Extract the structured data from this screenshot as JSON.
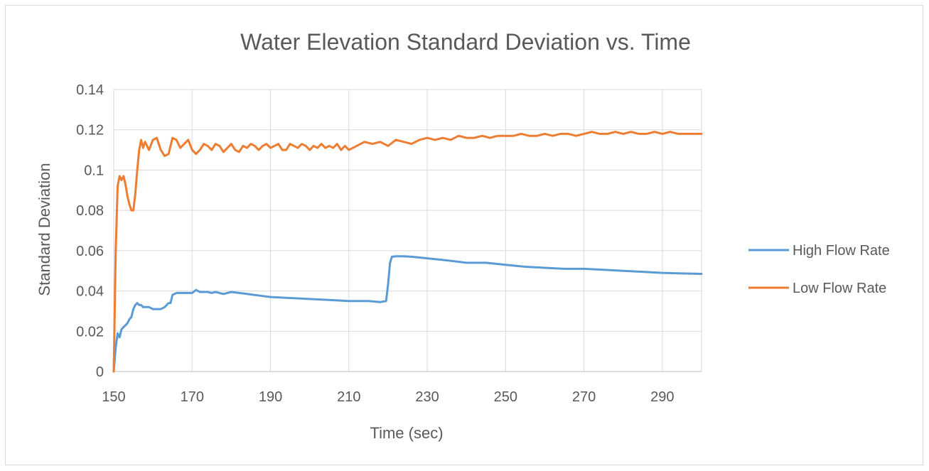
{
  "chart_data": {
    "type": "line",
    "title": "Water Elevation Standard Deviation vs. Time",
    "xlabel": "Time (sec)",
    "ylabel": "Standard Deviation",
    "xlim": [
      150,
      300
    ],
    "ylim": [
      0,
      0.14
    ],
    "x_ticks": [
      150,
      170,
      190,
      210,
      230,
      250,
      270,
      290
    ],
    "y_ticks": [
      0,
      0.02,
      0.04,
      0.06,
      0.08,
      0.1,
      0.12,
      0.14
    ],
    "x_tick_labels": [
      "150",
      "170",
      "190",
      "210",
      "230",
      "250",
      "270",
      "290"
    ],
    "y_tick_labels": [
      "0",
      "0.02",
      "0.04",
      "0.06",
      "0.08",
      "0.1",
      "0.12",
      "0.14"
    ],
    "grid": true,
    "legend_position": "right",
    "series": [
      {
        "name": "High Flow Rate",
        "color": "#5b9bd5",
        "x": [
          150,
          150.5,
          151,
          151.5,
          152,
          152.5,
          153,
          153.5,
          154,
          154.5,
          155,
          155.5,
          156,
          156.5,
          157,
          157.5,
          158,
          159,
          160,
          161,
          162,
          163,
          163.5,
          164,
          164.5,
          165,
          166,
          167,
          168,
          169,
          170,
          171,
          172,
          173,
          174,
          175,
          176,
          177,
          178,
          179,
          180,
          182,
          184,
          186,
          188,
          190,
          195,
          200,
          205,
          210,
          212,
          215,
          218,
          219.5,
          220,
          220.5,
          221,
          222,
          224,
          226,
          230,
          235,
          240,
          243,
          245,
          250,
          255,
          260,
          265,
          270,
          275,
          280,
          285,
          290,
          295,
          300
        ],
        "values": [
          0.0,
          0.012,
          0.019,
          0.017,
          0.021,
          0.022,
          0.023,
          0.024,
          0.026,
          0.027,
          0.031,
          0.033,
          0.034,
          0.033,
          0.033,
          0.032,
          0.032,
          0.032,
          0.031,
          0.031,
          0.031,
          0.032,
          0.033,
          0.034,
          0.034,
          0.038,
          0.039,
          0.039,
          0.039,
          0.039,
          0.039,
          0.0405,
          0.0395,
          0.0395,
          0.0395,
          0.039,
          0.0395,
          0.039,
          0.0385,
          0.039,
          0.0395,
          0.039,
          0.0385,
          0.038,
          0.0375,
          0.037,
          0.0365,
          0.036,
          0.0355,
          0.035,
          0.035,
          0.035,
          0.0345,
          0.035,
          0.043,
          0.054,
          0.057,
          0.0572,
          0.0572,
          0.057,
          0.0562,
          0.0552,
          0.054,
          0.054,
          0.054,
          0.053,
          0.052,
          0.0515,
          0.051,
          0.051,
          0.0505,
          0.05,
          0.0495,
          0.049,
          0.0487,
          0.0485
        ]
      },
      {
        "name": "Low Flow Rate",
        "color": "#ed7d31",
        "x": [
          150,
          150.5,
          151,
          151.5,
          152,
          152.5,
          153,
          153.5,
          154,
          154.5,
          155,
          155.5,
          156,
          156.5,
          157,
          157.5,
          158,
          159,
          160,
          161,
          162,
          163,
          164,
          165,
          166,
          167,
          168,
          169,
          170,
          171,
          172,
          173,
          174,
          175,
          176,
          177,
          178,
          179,
          180,
          181,
          182,
          183,
          184,
          185,
          186,
          187,
          188,
          189,
          190,
          191,
          192,
          193,
          194,
          195,
          196,
          197,
          198,
          199,
          200,
          201,
          202,
          203,
          204,
          205,
          206,
          207,
          208,
          209,
          210,
          212,
          214,
          216,
          218,
          220,
          222,
          224,
          226,
          228,
          230,
          232,
          234,
          236,
          238,
          240,
          242,
          244,
          246,
          248,
          250,
          252,
          254,
          256,
          258,
          260,
          262,
          264,
          266,
          268,
          270,
          272,
          274,
          276,
          278,
          280,
          282,
          284,
          286,
          288,
          290,
          292,
          294,
          296,
          298,
          300
        ],
        "values": [
          0.0,
          0.06,
          0.092,
          0.097,
          0.095,
          0.097,
          0.093,
          0.087,
          0.083,
          0.08,
          0.08,
          0.088,
          0.1,
          0.11,
          0.115,
          0.111,
          0.114,
          0.11,
          0.115,
          0.116,
          0.11,
          0.107,
          0.108,
          0.116,
          0.115,
          0.111,
          0.113,
          0.115,
          0.11,
          0.108,
          0.11,
          0.113,
          0.112,
          0.11,
          0.113,
          0.112,
          0.109,
          0.111,
          0.113,
          0.11,
          0.109,
          0.112,
          0.111,
          0.113,
          0.112,
          0.11,
          0.112,
          0.113,
          0.111,
          0.112,
          0.113,
          0.11,
          0.11,
          0.113,
          0.112,
          0.111,
          0.113,
          0.112,
          0.11,
          0.112,
          0.111,
          0.113,
          0.111,
          0.112,
          0.111,
          0.113,
          0.11,
          0.112,
          0.11,
          0.112,
          0.114,
          0.113,
          0.114,
          0.112,
          0.115,
          0.114,
          0.113,
          0.115,
          0.116,
          0.115,
          0.116,
          0.115,
          0.117,
          0.116,
          0.116,
          0.117,
          0.116,
          0.117,
          0.117,
          0.117,
          0.118,
          0.117,
          0.117,
          0.118,
          0.117,
          0.118,
          0.118,
          0.117,
          0.118,
          0.119,
          0.118,
          0.118,
          0.119,
          0.118,
          0.119,
          0.118,
          0.118,
          0.119,
          0.118,
          0.119,
          0.118,
          0.118,
          0.118,
          0.118
        ]
      }
    ]
  }
}
